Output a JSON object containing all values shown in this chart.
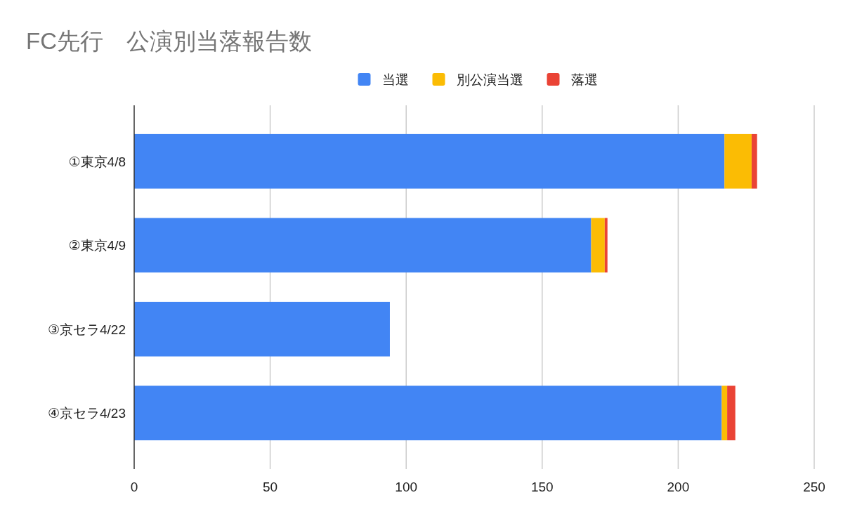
{
  "chart_data": {
    "type": "bar",
    "orientation": "horizontal",
    "stacked": true,
    "title": "FC先行　公演別当落報告数",
    "categories": [
      "①東京4/8",
      "②東京4/9",
      "③京セラ4/22",
      "④京セラ4/23"
    ],
    "series": [
      {
        "name": "当選",
        "color": "#4285f4",
        "values": [
          217,
          168,
          94,
          216
        ]
      },
      {
        "name": "別公演当選",
        "color": "#fbbc04",
        "values": [
          10,
          5,
          0,
          2
        ]
      },
      {
        "name": "落選",
        "color": "#ea4335",
        "values": [
          2,
          1,
          0,
          3
        ]
      }
    ],
    "xlim": [
      0,
      250
    ],
    "xticks": [
      0,
      50,
      100,
      150,
      200,
      250
    ],
    "grid": "x",
    "legend": "top"
  }
}
